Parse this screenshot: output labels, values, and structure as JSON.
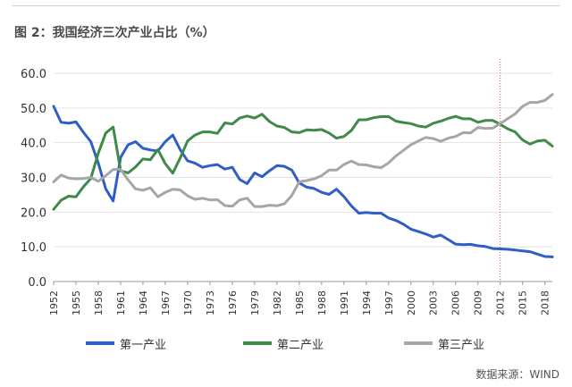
{
  "header": {
    "title": "图 2：我国经济三次产业占比（%）"
  },
  "source": "数据来源：WIND",
  "chart_data": {
    "type": "line",
    "title": "图 2：我国经济三次产业占比（%）",
    "ylim": [
      0,
      60
    ],
    "y_ticks": [
      "0.0",
      "10.0",
      "20.0",
      "30.0",
      "40.0",
      "50.0",
      "60.0"
    ],
    "x_ticks": [
      1952,
      1955,
      1958,
      1961,
      1964,
      1967,
      1970,
      1973,
      1976,
      1979,
      1982,
      1985,
      1988,
      1991,
      1994,
      1997,
      2000,
      2003,
      2006,
      2009,
      2012,
      2015,
      2018
    ],
    "xlim": [
      1952,
      2019
    ],
    "grid": "horizontal",
    "legend_position": "bottom",
    "reference_line": {
      "x": 2012,
      "style": "dotted",
      "color": "#d9534f"
    },
    "x": [
      1952,
      1953,
      1954,
      1955,
      1956,
      1957,
      1958,
      1959,
      1960,
      1961,
      1962,
      1963,
      1964,
      1965,
      1966,
      1967,
      1968,
      1969,
      1970,
      1971,
      1972,
      1973,
      1974,
      1975,
      1976,
      1977,
      1978,
      1979,
      1980,
      1981,
      1982,
      1983,
      1984,
      1985,
      1986,
      1987,
      1988,
      1989,
      1990,
      1991,
      1992,
      1993,
      1994,
      1995,
      1996,
      1997,
      1998,
      1999,
      2000,
      2001,
      2002,
      2003,
      2004,
      2005,
      2006,
      2007,
      2008,
      2009,
      2010,
      2011,
      2012,
      2013,
      2014,
      2015,
      2016,
      2017,
      2018,
      2019
    ],
    "series": [
      {
        "name": "第一产业",
        "color": "#2f5fc4",
        "values": [
          50.5,
          45.9,
          45.6,
          46.0,
          43.0,
          40.3,
          34.1,
          26.7,
          23.2,
          35.8,
          39.4,
          40.3,
          38.4,
          37.9,
          37.6,
          40.3,
          42.2,
          38.0,
          34.8,
          34.1,
          32.9,
          33.4,
          33.7,
          32.4,
          32.9,
          29.4,
          28.2,
          31.3,
          30.2,
          31.9,
          33.4,
          33.2,
          32.1,
          28.4,
          27.2,
          26.8,
          25.7,
          25.1,
          26.6,
          24.5,
          21.8,
          19.7,
          19.9,
          19.7,
          19.7,
          18.3,
          17.6,
          16.5,
          15.1,
          14.4,
          13.7,
          12.8,
          13.4,
          12.1,
          10.8,
          10.6,
          10.7,
          10.3,
          10.1,
          9.5,
          9.4,
          9.3,
          9.1,
          8.8,
          8.6,
          7.9,
          7.2,
          7.1
        ]
      },
      {
        "name": "第二产业",
        "color": "#3f8a48",
        "values": [
          20.8,
          23.4,
          24.6,
          24.4,
          27.3,
          29.7,
          37.0,
          42.8,
          44.5,
          31.9,
          31.3,
          33.0,
          35.3,
          35.1,
          38.0,
          34.0,
          31.2,
          35.6,
          40.5,
          42.2,
          43.1,
          43.1,
          42.7,
          45.7,
          45.4,
          47.1,
          47.7,
          47.1,
          48.2,
          46.1,
          44.8,
          44.4,
          43.1,
          42.9,
          43.7,
          43.6,
          43.8,
          42.8,
          41.3,
          41.8,
          43.5,
          46.6,
          46.6,
          47.2,
          47.5,
          47.5,
          46.2,
          45.8,
          45.5,
          44.8,
          44.5,
          45.6,
          46.2,
          47.0,
          47.6,
          46.9,
          46.9,
          45.9,
          46.4,
          46.4,
          45.3,
          44.0,
          43.1,
          40.8,
          39.6,
          40.5,
          40.7,
          39.0
        ]
      },
      {
        "name": "第三产业",
        "color": "#a6a6a6",
        "values": [
          28.7,
          30.7,
          29.8,
          29.6,
          29.7,
          30.0,
          28.9,
          30.5,
          32.3,
          32.3,
          29.3,
          26.7,
          26.3,
          27.0,
          24.4,
          25.7,
          26.6,
          26.4,
          24.7,
          23.7,
          24.0,
          23.5,
          23.6,
          21.9,
          21.7,
          23.5,
          24.0,
          21.6,
          21.6,
          22.0,
          21.8,
          22.4,
          24.8,
          28.7,
          29.1,
          29.6,
          30.5,
          32.1,
          32.1,
          33.7,
          34.7,
          33.7,
          33.6,
          33.1,
          32.8,
          34.2,
          36.2,
          37.8,
          39.4,
          40.5,
          41.5,
          41.2,
          40.4,
          41.3,
          41.8,
          42.9,
          42.8,
          44.4,
          44.1,
          44.2,
          45.5,
          46.9,
          48.3,
          50.5,
          51.6,
          51.6,
          52.2,
          53.9
        ]
      }
    ]
  }
}
